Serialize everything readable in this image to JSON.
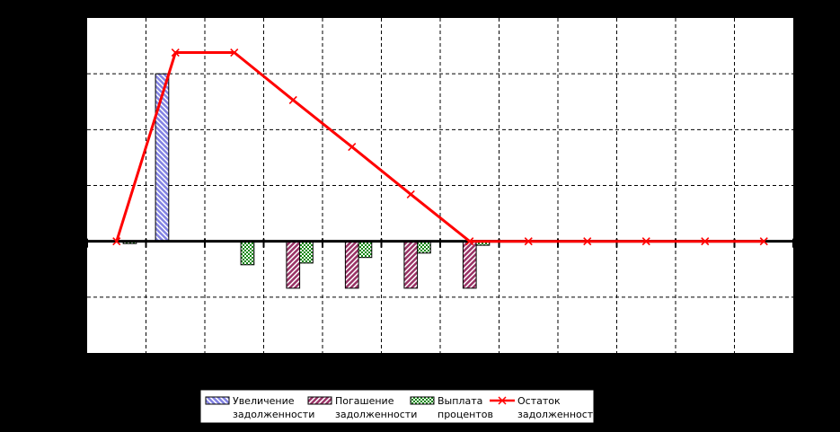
{
  "window": {
    "background": "#000000",
    "plot_background": "#ffffff",
    "legend_background": "#ffffff"
  },
  "legend": {
    "items": [
      {
        "swatch": "blue-diagonal-hatch-swatch",
        "line1": "Увеличение",
        "line2": "задолженности"
      },
      {
        "swatch": "plum-diagonal-hatch-swatch",
        "line1": "Погашение",
        "line2": "задолженности"
      },
      {
        "swatch": "green-checker-swatch",
        "line1": "Выплата",
        "line2": "процентов"
      },
      {
        "swatch": "red-line-x-marker-swatch",
        "line1": "Остаток",
        "line2": "задолженности"
      }
    ]
  },
  "chart_data": {
    "type": "combo-bar-line",
    "title": "",
    "xlabel": "",
    "ylabel": "",
    "x": [
      1,
      2,
      3,
      4,
      5,
      6,
      7,
      8,
      9,
      10,
      11,
      12
    ],
    "x_tick_labels_visible": false,
    "y_tick_labels_visible": false,
    "ylim": [
      -200,
      400
    ],
    "y_grid_step": 100,
    "grid": "dashed-black-on-white",
    "zero_axis": "solid-black-thick",
    "legend_position": "bottom",
    "series": [
      {
        "name": "Увеличение задолженности",
        "type": "bar",
        "slot": 0,
        "color": "#8282e2",
        "hatch": "diagonal-back",
        "values": [
          0,
          300,
          0,
          0,
          0,
          0,
          0,
          0,
          0,
          0,
          0,
          0
        ]
      },
      {
        "name": "Погашение задолженности",
        "type": "bar",
        "slot": 1,
        "color": "#993366",
        "hatch": "diagonal-forward",
        "values": [
          0,
          0,
          0,
          -84,
          -84,
          -84,
          -84,
          0,
          0,
          0,
          0,
          0
        ]
      },
      {
        "name": "Выплата процентов",
        "type": "bar",
        "slot": 2,
        "color": "#0c860c",
        "hatch": "checker",
        "values": [
          -4,
          0,
          -42,
          -39,
          -29,
          -21,
          -7,
          0,
          0,
          0,
          0,
          0
        ]
      },
      {
        "name": "Остаток задолженности",
        "type": "line",
        "color": "#ff0000",
        "marker": "x",
        "values": [
          0,
          338,
          338,
          253,
          169,
          84,
          0,
          0,
          0,
          0,
          0,
          0
        ]
      }
    ]
  }
}
